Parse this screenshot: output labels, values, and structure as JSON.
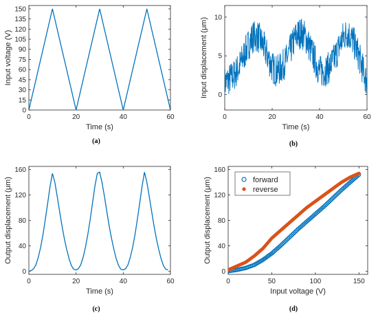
{
  "chart_data": [
    {
      "type": "line",
      "caption": "(a)",
      "xlabel": "Time (s)",
      "ylabel": "Input voltage (V)",
      "xlim": [
        0,
        60
      ],
      "ylim": [
        0,
        155
      ],
      "xticks": [
        0,
        20,
        40,
        60
      ],
      "yticks": [
        0,
        15,
        30,
        45,
        60,
        75,
        90,
        105,
        120,
        135,
        150
      ],
      "series": [
        {
          "color": "#0072BD",
          "x": [
            0,
            10,
            20,
            30,
            40,
            50,
            60
          ],
          "y": [
            0,
            150,
            0,
            150,
            0,
            150,
            0
          ]
        }
      ]
    },
    {
      "type": "line",
      "caption": "(b)",
      "xlabel": "Time (s)",
      "ylabel": "Input displacement (μm)",
      "xlim": [
        0,
        60
      ],
      "ylim": [
        -2,
        11.5
      ],
      "xticks": [
        0,
        20,
        40,
        60
      ],
      "yticks": [
        0,
        5,
        10
      ],
      "noise": true,
      "series": [
        {
          "color": "#0072BD",
          "x": [
            0,
            2,
            4,
            6,
            8,
            10,
            12,
            14,
            16,
            18,
            20,
            22,
            24,
            26,
            28,
            30,
            32,
            34,
            36,
            38,
            40,
            42,
            44,
            46,
            48,
            50,
            52,
            54,
            56,
            58,
            60
          ],
          "y": [
            1.5,
            2,
            2.5,
            3.5,
            5,
            6.5,
            7.5,
            7.5,
            6.5,
            5,
            3.5,
            3,
            3.5,
            4.5,
            6,
            7.5,
            8,
            7.5,
            6,
            4.5,
            3,
            3,
            3.5,
            4.5,
            6,
            7.5,
            8,
            7,
            5.5,
            3.5,
            1.5
          ]
        }
      ]
    },
    {
      "type": "line",
      "caption": "(c)",
      "xlabel": "Time (s)",
      "ylabel": "Output displacement (μm)",
      "xlim": [
        0,
        60
      ],
      "ylim": [
        -5,
        165
      ],
      "xticks": [
        0,
        20,
        40,
        60
      ],
      "yticks": [
        0,
        40,
        80,
        120,
        160
      ],
      "series": [
        {
          "color": "#0072BD",
          "x": [
            0,
            1,
            2,
            3,
            4,
            5,
            6,
            7,
            8,
            9,
            10,
            11,
            12,
            13,
            14,
            15,
            16,
            17,
            18,
            19,
            20,
            21,
            22,
            23,
            24,
            25,
            26,
            27,
            28,
            29,
            30,
            31,
            32,
            33,
            34,
            35,
            36,
            37,
            38,
            39,
            40,
            41,
            42,
            43,
            44,
            45,
            46,
            47,
            48,
            49,
            50,
            51,
            52,
            53,
            54,
            55,
            56,
            57,
            58,
            59
          ],
          "y": [
            0,
            1,
            4,
            10,
            22,
            38,
            58,
            82,
            108,
            134,
            154,
            140,
            118,
            95,
            72,
            52,
            35,
            20,
            9,
            3,
            2,
            4,
            10,
            22,
            38,
            58,
            82,
            108,
            134,
            154,
            156,
            140,
            118,
            95,
            72,
            52,
            35,
            20,
            9,
            3,
            2,
            4,
            10,
            22,
            38,
            58,
            82,
            108,
            134,
            156,
            140,
            118,
            95,
            72,
            52,
            35,
            20,
            9,
            3,
            2
          ]
        }
      ]
    },
    {
      "type": "scatter",
      "caption": "(d)",
      "xlabel": "Input voltage (V)",
      "ylabel": "Output displacement (μm)",
      "xlim": [
        0,
        160
      ],
      "ylim": [
        -5,
        165
      ],
      "xticks": [
        0,
        50,
        100,
        150
      ],
      "yticks": [
        0,
        40,
        80,
        120,
        160
      ],
      "legend_position": "top-left",
      "series": [
        {
          "name": "forward",
          "color": "#0072BD",
          "marker": "circle-open",
          "x": [
            0,
            10,
            20,
            30,
            40,
            50,
            60,
            70,
            80,
            90,
            100,
            110,
            120,
            130,
            140,
            150
          ],
          "y": [
            0,
            2,
            5,
            10,
            18,
            28,
            40,
            53,
            66,
            78,
            90,
            102,
            115,
            128,
            140,
            152
          ]
        },
        {
          "name": "reverse",
          "color": "#D95319",
          "marker": "filled",
          "x": [
            150,
            140,
            130,
            120,
            110,
            100,
            90,
            80,
            70,
            60,
            50,
            40,
            30,
            20,
            10,
            0
          ],
          "y": [
            154,
            148,
            140,
            130,
            120,
            110,
            100,
            88,
            76,
            64,
            52,
            36,
            24,
            14,
            8,
            2
          ]
        }
      ]
    }
  ]
}
